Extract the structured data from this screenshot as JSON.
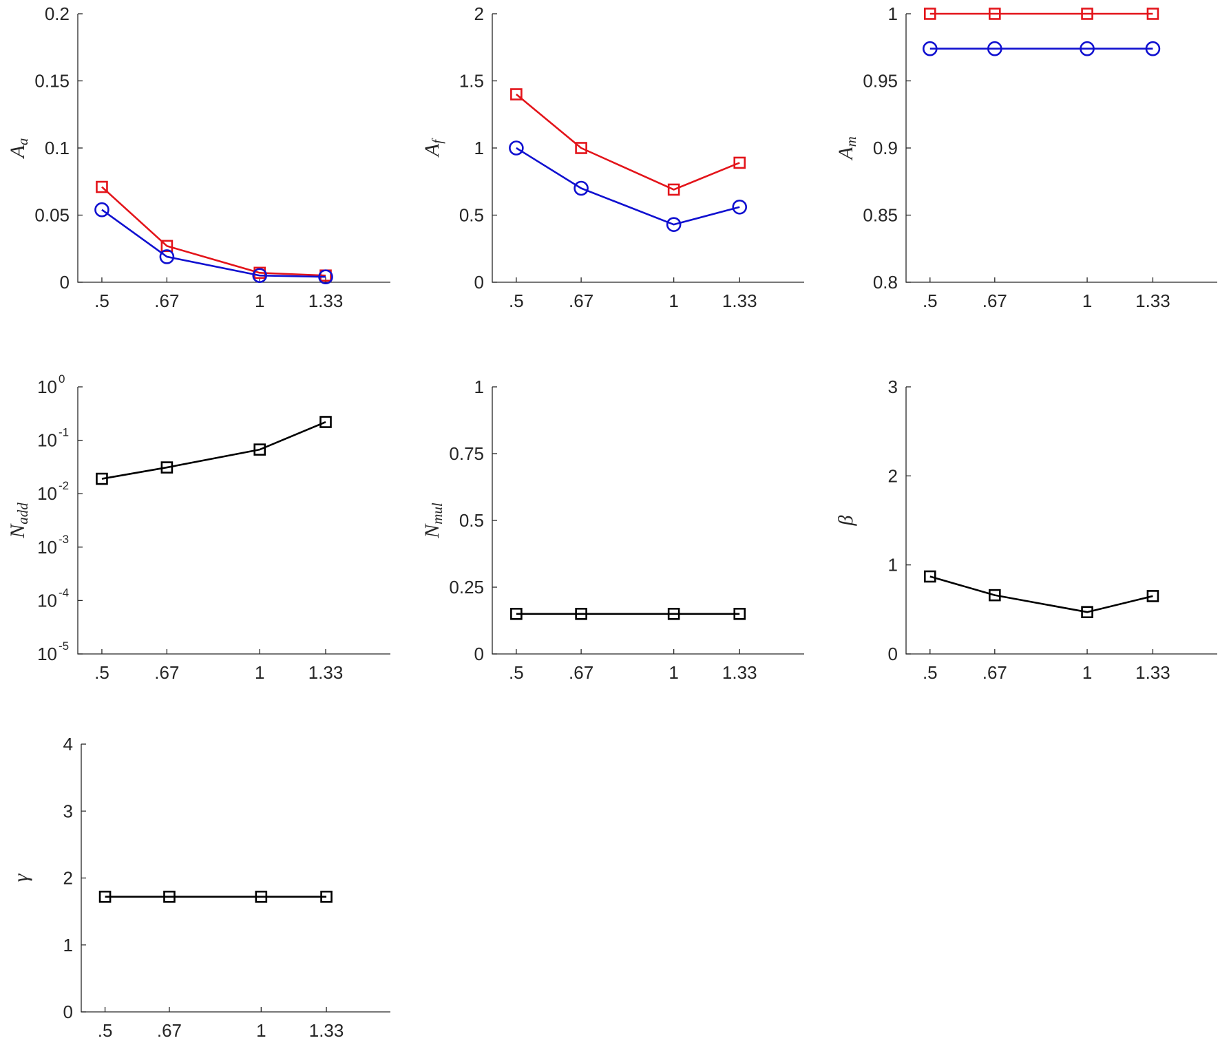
{
  "chart_data": [
    {
      "type": "line",
      "panel": "A_a",
      "ylabel": "A",
      "ylabel_sub": "a",
      "x": [
        0.5,
        0.67,
        1,
        1.33
      ],
      "xtick_labels": [
        ".5",
        ".67",
        "1",
        "1.33"
      ],
      "yscale": "linear",
      "ylim": [
        0,
        0.2
      ],
      "yticks": [
        0,
        0.05,
        0.1,
        0.15,
        0.2
      ],
      "ytick_labels": [
        "0",
        "0.05",
        "0.1",
        "0.15",
        "0.2"
      ],
      "series": [
        {
          "name": "red-squares",
          "color": "#e3141a",
          "marker": "square",
          "values": [
            0.071,
            0.027,
            0.007,
            0.005
          ]
        },
        {
          "name": "blue-circles",
          "color": "#1010d0",
          "marker": "circle",
          "values": [
            0.054,
            0.019,
            0.005,
            0.004
          ]
        }
      ]
    },
    {
      "type": "line",
      "panel": "A_f",
      "ylabel": "A",
      "ylabel_sub": "f",
      "x": [
        0.5,
        0.67,
        1,
        1.33
      ],
      "xtick_labels": [
        ".5",
        ".67",
        "1",
        "1.33"
      ],
      "yscale": "linear",
      "ylim": [
        0,
        2
      ],
      "yticks": [
        0,
        0.5,
        1,
        1.5,
        2
      ],
      "ytick_labels": [
        "0",
        "0.5",
        "1",
        "1.5",
        "2"
      ],
      "series": [
        {
          "name": "red-squares",
          "color": "#e3141a",
          "marker": "square",
          "values": [
            1.4,
            1.0,
            0.69,
            0.89
          ]
        },
        {
          "name": "blue-circles",
          "color": "#1010d0",
          "marker": "circle",
          "values": [
            1.0,
            0.7,
            0.43,
            0.56
          ]
        }
      ]
    },
    {
      "type": "line",
      "panel": "A_m",
      "ylabel": "A",
      "ylabel_sub": "m",
      "x": [
        0.5,
        0.67,
        1,
        1.33
      ],
      "xtick_labels": [
        ".5",
        ".67",
        "1",
        "1.33"
      ],
      "yscale": "linear",
      "ylim": [
        0.8,
        1
      ],
      "yticks": [
        0.8,
        0.85,
        0.9,
        0.95,
        1
      ],
      "ytick_labels": [
        "0.8",
        "0.85",
        "0.9",
        "0.95",
        "1"
      ],
      "series": [
        {
          "name": "red-squares",
          "color": "#e3141a",
          "marker": "square",
          "values": [
            1.0,
            1.0,
            1.0,
            1.0
          ]
        },
        {
          "name": "blue-circles",
          "color": "#1010d0",
          "marker": "circle",
          "values": [
            0.974,
            0.974,
            0.974,
            0.974
          ]
        }
      ]
    },
    {
      "type": "line",
      "panel": "N_add",
      "ylabel": "N",
      "ylabel_sub": "add",
      "x": [
        0.5,
        0.67,
        1,
        1.33
      ],
      "xtick_labels": [
        ".5",
        ".67",
        "1",
        "1.33"
      ],
      "yscale": "log",
      "ylim": [
        1e-05,
        1
      ],
      "yticks": [
        1e-05,
        0.0001,
        0.001,
        0.01,
        0.1,
        1
      ],
      "ytick_base": "10",
      "ytick_exponents": [
        "-5",
        "-4",
        "-3",
        "-2",
        "-1",
        "0"
      ],
      "series": [
        {
          "name": "black-squares",
          "color": "#000000",
          "marker": "square",
          "values": [
            0.019,
            0.031,
            0.067,
            0.22
          ]
        }
      ]
    },
    {
      "type": "line",
      "panel": "N_mul",
      "ylabel": "N",
      "ylabel_sub": "mul",
      "x": [
        0.5,
        0.67,
        1,
        1.33
      ],
      "xtick_labels": [
        ".5",
        ".67",
        "1",
        "1.33"
      ],
      "yscale": "linear",
      "ylim": [
        0,
        1
      ],
      "yticks": [
        0,
        0.25,
        0.5,
        0.75,
        1
      ],
      "ytick_labels": [
        "0",
        "0.25",
        "0.5",
        "0.75",
        "1"
      ],
      "series": [
        {
          "name": "black-squares",
          "color": "#000000",
          "marker": "square",
          "values": [
            0.15,
            0.15,
            0.15,
            0.15
          ]
        }
      ]
    },
    {
      "type": "line",
      "panel": "beta",
      "ylabel": "β",
      "ylabel_sub": "",
      "x": [
        0.5,
        0.67,
        1,
        1.33
      ],
      "xtick_labels": [
        ".5",
        ".67",
        "1",
        "1.33"
      ],
      "yscale": "linear",
      "ylim": [
        0,
        3
      ],
      "yticks": [
        0,
        1,
        2,
        3
      ],
      "ytick_labels": [
        "0",
        "1",
        "2",
        "3"
      ],
      "series": [
        {
          "name": "black-squares",
          "color": "#000000",
          "marker": "square",
          "values": [
            0.87,
            0.66,
            0.47,
            0.65
          ]
        }
      ]
    },
    {
      "type": "line",
      "panel": "gamma",
      "ylabel": "γ",
      "ylabel_sub": "",
      "x": [
        0.5,
        0.67,
        1,
        1.33
      ],
      "xtick_labels": [
        ".5",
        ".67",
        "1",
        "1.33"
      ],
      "yscale": "linear",
      "ylim": [
        0,
        4
      ],
      "yticks": [
        0,
        1,
        2,
        3,
        4
      ],
      "ytick_labels": [
        "0",
        "1",
        "2",
        "3",
        "4"
      ],
      "series": [
        {
          "name": "black-squares",
          "color": "#000000",
          "marker": "square",
          "values": [
            1.72,
            1.72,
            1.72,
            1.72
          ]
        }
      ]
    }
  ]
}
